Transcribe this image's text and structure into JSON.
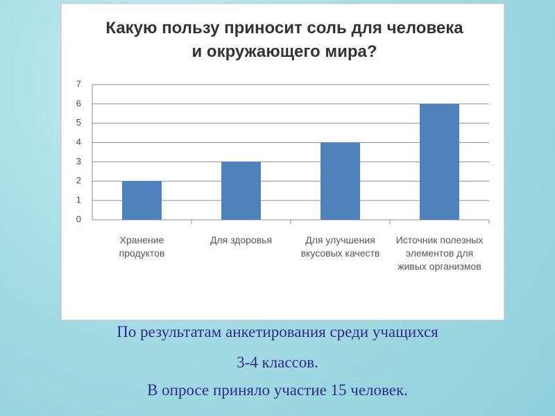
{
  "chart_data": {
    "type": "bar",
    "title": "Какую пользу приносит соль для человека и окружающего мира?",
    "categories": [
      "Хранение продуктов",
      "Для здоровья",
      "Для улучшения вкусовых качеств",
      "Источник полезных элементов для живых организмов"
    ],
    "values": [
      2,
      3,
      4,
      6
    ],
    "color": "#4f81bd",
    "ylim": [
      0,
      7
    ],
    "yticks": [
      0,
      1,
      2,
      3,
      4,
      5,
      6,
      7
    ],
    "grid": true
  },
  "caption": [
    "По результатам анкетирования среди учащихся",
    "3-4 классов.",
    "В опросе приняло участие 15 человек."
  ]
}
